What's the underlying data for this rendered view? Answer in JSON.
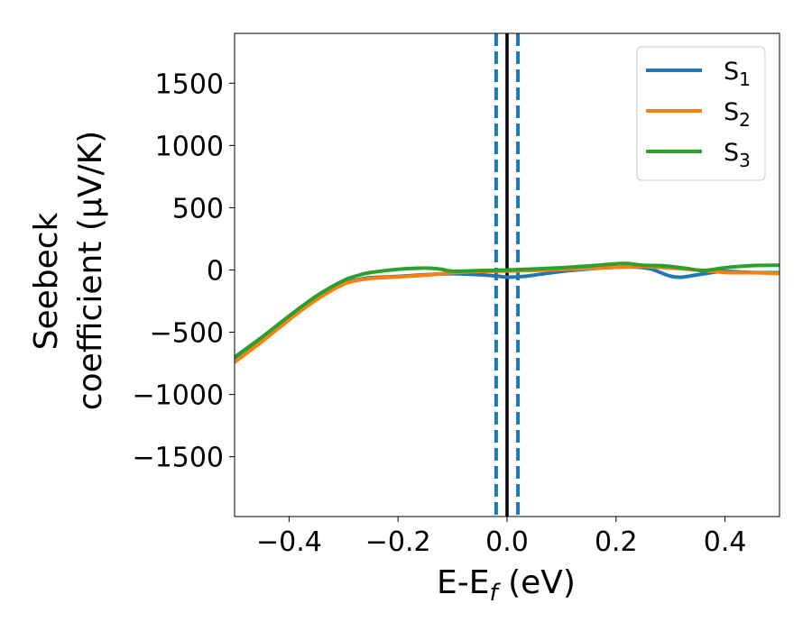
{
  "chart_data": {
    "type": "line",
    "xlabel": "E-E",
    "xlabel_sub": "f",
    "xlabel_unit": " (eV)",
    "ylabel_line1": "Seebeck",
    "ylabel_line2": "coefficient  (μV/K)",
    "xlim": [
      -0.5,
      0.5
    ],
    "ylim": [
      -1980,
      1900
    ],
    "xticks": [
      -0.4,
      -0.2,
      0.0,
      0.2,
      0.4
    ],
    "xtick_labels": [
      "−0.4",
      "−0.2",
      "0.0",
      "0.2",
      "0.4"
    ],
    "yticks": [
      -1500,
      -1000,
      -500,
      0,
      500,
      1000,
      1500
    ],
    "ytick_labels": [
      "−1500",
      "−1000",
      "−500",
      "0",
      "500",
      "1000",
      "1500"
    ],
    "grid": false,
    "legend_position": "top-right",
    "vertical_lines": [
      {
        "x": 0.0,
        "style": "solid",
        "color": "#000000"
      },
      {
        "x": -0.02,
        "style": "dashed",
        "color": "#1f77b4"
      },
      {
        "x": 0.02,
        "style": "dashed",
        "color": "#1f77b4"
      }
    ],
    "series": [
      {
        "name": "S",
        "sub": "1",
        "color": "#1f77b4",
        "x": [
          -0.5,
          -0.45,
          -0.4,
          -0.35,
          -0.3,
          -0.27,
          -0.25,
          -0.2,
          -0.15,
          -0.1,
          -0.05,
          -0.02,
          0.0,
          0.03,
          0.06,
          0.1,
          0.15,
          0.2,
          0.23,
          0.26,
          0.28,
          0.3,
          0.32,
          0.35,
          0.38,
          0.4,
          0.45,
          0.5
        ],
        "y": [
          -720,
          -560,
          -390,
          -230,
          -110,
          -75,
          -62,
          -52,
          -38,
          -30,
          -38,
          -48,
          -58,
          -52,
          -35,
          -12,
          8,
          22,
          24,
          12,
          -18,
          -50,
          -58,
          -38,
          -18,
          -12,
          -20,
          -22
        ]
      },
      {
        "name": "S",
        "sub": "2",
        "color": "#ff7f0e",
        "x": [
          -0.5,
          -0.45,
          -0.4,
          -0.35,
          -0.3,
          -0.27,
          -0.25,
          -0.2,
          -0.15,
          -0.1,
          -0.05,
          0.0,
          0.05,
          0.1,
          0.15,
          0.2,
          0.25,
          0.3,
          0.35,
          0.4,
          0.45,
          0.5
        ],
        "y": [
          -740,
          -575,
          -400,
          -240,
          -115,
          -80,
          -68,
          -55,
          -42,
          -22,
          -12,
          -8,
          -4,
          3,
          12,
          22,
          28,
          15,
          0,
          -20,
          -22,
          -28
        ]
      },
      {
        "name": "S",
        "sub": "3",
        "color": "#2ca02c",
        "x": [
          -0.5,
          -0.45,
          -0.4,
          -0.35,
          -0.3,
          -0.27,
          -0.25,
          -0.2,
          -0.15,
          -0.12,
          -0.1,
          -0.05,
          0.0,
          0.05,
          0.1,
          0.15,
          0.2,
          0.22,
          0.25,
          0.28,
          0.3,
          0.33,
          0.36,
          0.4,
          0.45,
          0.5
        ],
        "y": [
          -700,
          -540,
          -370,
          -210,
          -85,
          -40,
          -20,
          5,
          15,
          5,
          -10,
          -5,
          0,
          8,
          18,
          32,
          50,
          52,
          38,
          35,
          28,
          12,
          -5,
          18,
          35,
          38
        ]
      }
    ]
  }
}
